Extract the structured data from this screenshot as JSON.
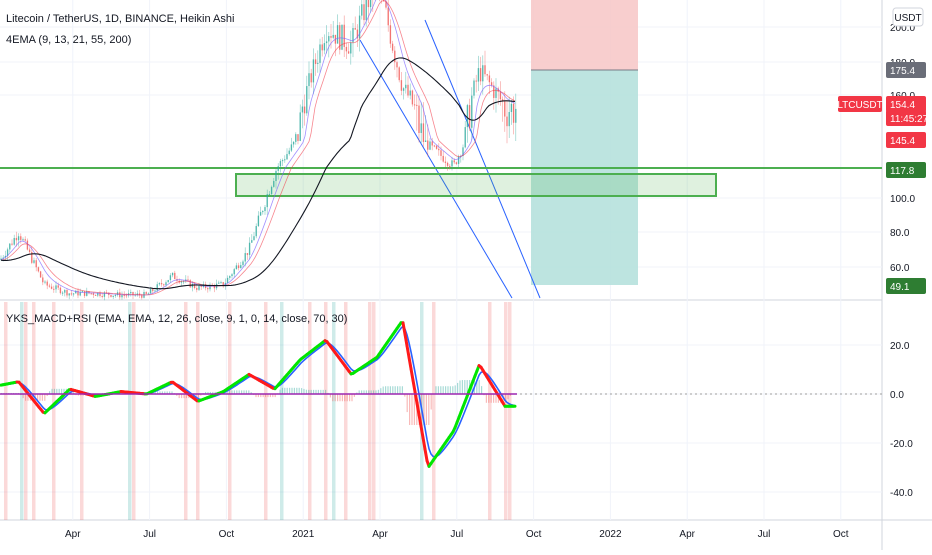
{
  "header": {
    "main_title": "Litecoin / TetherUS, 1D, BINANCE, Heikin Ashi",
    "indicator": "4EMA (9, 13, 21, 55, 200)",
    "lower_indicator": "YKS_MACD+RSI (EMA, EMA, 12, 26, close, 9, 1, 0, 14, close, 70, 30)",
    "currency_badge": "USDT"
  },
  "colors": {
    "up": "#26a69a",
    "down": "#ef5350",
    "zone": "#4caf50",
    "channel": "#2962ff",
    "macd_up": "#00e600",
    "macd_down": "#ff1a1a"
  },
  "chart_data": [
    {
      "type": "line",
      "title": "Litecoin / TetherUS, 1D, BINANCE, Heikin Ashi",
      "x_ticks": [
        "Apr",
        "Jul",
        "Oct",
        "2021",
        "Apr",
        "Jul",
        "Oct",
        "2022",
        "Apr",
        "Jul",
        "Oct"
      ],
      "y_ticks": [
        "200.0",
        "180.0",
        "160.0",
        "100.0",
        "80.0",
        "60.0"
      ],
      "ylim": [
        45,
        235
      ],
      "series": [
        {
          "name": "LTCUSDT",
          "x": [
            "2020-01",
            "2020-02",
            "2020-03",
            "2020-04",
            "2020-05",
            "2020-06",
            "2020-07",
            "2020-08",
            "2020-09",
            "2020-10",
            "2020-11",
            "2020-12",
            "2021-01",
            "2021-02",
            "2021-03",
            "2021-04",
            "2021-05",
            "2021-06",
            "2021-07",
            "2021-08",
            "2021-09"
          ],
          "values": [
            58,
            80,
            50,
            45,
            45,
            44,
            44,
            55,
            48,
            50,
            70,
            115,
            150,
            200,
            190,
            230,
            165,
            140,
            120,
            175,
            154
          ]
        }
      ],
      "price_tags": [
        {
          "label": "175.4",
          "value": 175.4
        },
        {
          "label": "LTCUSDT",
          "value": 154.4
        },
        {
          "label": "154.4",
          "value": 154.4
        },
        {
          "label": "11:45:27",
          "value": 150
        },
        {
          "label": "145.4",
          "value": 145.4
        },
        {
          "label": "117.8",
          "value": 117.8
        },
        {
          "label": "49.1",
          "value": 49.1
        }
      ],
      "support_line": 117.8,
      "support_zone": [
        103,
        115
      ],
      "position": {
        "entry": 175.4,
        "stop": 235,
        "target": 52
      },
      "grid": true
    },
    {
      "type": "line",
      "title": "YKS_MACD+RSI (EMA, EMA, 12, 26, close, 9, 1, 0, 14, close, 70, 30)",
      "y_ticks": [
        "20.0",
        "0.0",
        "-20.0",
        "-40.0"
      ],
      "ylim": [
        -48,
        35
      ],
      "series": [
        {
          "x": [
            "2020-01",
            "2020-02",
            "2020-03",
            "2020-04",
            "2020-05",
            "2020-06",
            "2020-07",
            "2020-08",
            "2020-09",
            "2020-10",
            "2020-11",
            "2020-12",
            "2021-01",
            "2021-02",
            "2021-03",
            "2021-04",
            "2021-05",
            "2021-06",
            "2021-07",
            "2021-08",
            "2021-09"
          ],
          "values": [
            3,
            5,
            -8,
            2,
            -1,
            1,
            0,
            5,
            -3,
            1,
            8,
            2,
            14,
            22,
            8,
            15,
            30,
            -30,
            -15,
            12,
            -5
          ]
        }
      ],
      "grid": true
    }
  ]
}
